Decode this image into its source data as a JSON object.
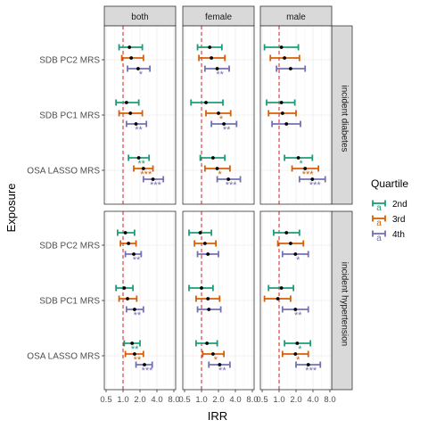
{
  "chart_data": {
    "type": "forest",
    "title": "",
    "xlabel": "IRR",
    "ylabel": "Exposure",
    "x_scale": "log2",
    "xlim": [
      0.5,
      8.0
    ],
    "x_ticks": [
      0.5,
      1.0,
      2.0,
      4.0,
      8.0
    ],
    "x_tick_labels": [
      "0.5",
      "1.0",
      "2.0",
      "4.0",
      "8.0"
    ],
    "reference_line": 1.0,
    "reference_line_color": "#d7191c",
    "columns": [
      "both",
      "female",
      "male"
    ],
    "rows": [
      "incident diabetes",
      "incident hypertension"
    ],
    "exposures": [
      "SDB PC2 MRS",
      "SDB PC1 MRS",
      "OSA LASSO MRS"
    ],
    "legend": {
      "title": "Quartile",
      "entries": [
        {
          "key": "2nd",
          "label": "2nd",
          "color": "#1b9e77"
        },
        {
          "key": "3rd",
          "label": "3rd",
          "color": "#d95f02"
        },
        {
          "key": "4th",
          "label": "4th",
          "color": "#7570b3"
        }
      ],
      "key_glyph": "a",
      "position": "right"
    },
    "panels": [
      {
        "row": "incident diabetes",
        "col": "both",
        "estimates": [
          {
            "exposure": "SDB PC2 MRS",
            "quartile": "2nd",
            "est": 1.3,
            "lo": 0.85,
            "hi": 2.2,
            "sig": ""
          },
          {
            "exposure": "SDB PC2 MRS",
            "quartile": "3rd",
            "est": 1.4,
            "lo": 0.95,
            "hi": 2.3,
            "sig": ""
          },
          {
            "exposure": "SDB PC2 MRS",
            "quartile": "4th",
            "est": 1.85,
            "lo": 1.2,
            "hi": 3.0,
            "sig": "*"
          },
          {
            "exposure": "SDB PC1 MRS",
            "quartile": "2nd",
            "est": 1.15,
            "lo": 0.75,
            "hi": 1.9,
            "sig": ""
          },
          {
            "exposure": "SDB PC1 MRS",
            "quartile": "3rd",
            "est": 1.35,
            "lo": 0.85,
            "hi": 2.2,
            "sig": ""
          },
          {
            "exposure": "SDB PC1 MRS",
            "quartile": "4th",
            "est": 1.7,
            "lo": 1.15,
            "hi": 2.6,
            "sig": "**"
          },
          {
            "exposure": "OSA LASSO MRS",
            "quartile": "2nd",
            "est": 1.9,
            "lo": 1.25,
            "hi": 2.9,
            "sig": "**"
          },
          {
            "exposure": "OSA LASSO MRS",
            "quartile": "3rd",
            "est": 2.3,
            "lo": 1.55,
            "hi": 3.4,
            "sig": "***"
          },
          {
            "exposure": "OSA LASSO MRS",
            "quartile": "4th",
            "est": 3.4,
            "lo": 2.3,
            "hi": 5.2,
            "sig": "***"
          }
        ]
      },
      {
        "row": "incident diabetes",
        "col": "female",
        "estimates": [
          {
            "exposure": "SDB PC2 MRS",
            "quartile": "2nd",
            "est": 1.4,
            "lo": 0.85,
            "hi": 2.3,
            "sig": ""
          },
          {
            "exposure": "SDB PC2 MRS",
            "quartile": "3rd",
            "est": 1.5,
            "lo": 0.9,
            "hi": 2.6,
            "sig": ""
          },
          {
            "exposure": "SDB PC2 MRS",
            "quartile": "4th",
            "est": 1.9,
            "lo": 1.15,
            "hi": 3.1,
            "sig": "**"
          },
          {
            "exposure": "SDB PC1 MRS",
            "quartile": "2nd",
            "est": 1.2,
            "lo": 0.65,
            "hi": 2.4,
            "sig": ""
          },
          {
            "exposure": "SDB PC1 MRS",
            "quartile": "3rd",
            "est": 2.0,
            "lo": 1.2,
            "hi": 3.3,
            "sig": "*"
          },
          {
            "exposure": "SDB PC1 MRS",
            "quartile": "4th",
            "est": 2.5,
            "lo": 1.5,
            "hi": 4.2,
            "sig": "**"
          },
          {
            "exposure": "OSA LASSO MRS",
            "quartile": "2nd",
            "est": 1.6,
            "lo": 0.95,
            "hi": 2.6,
            "sig": ""
          },
          {
            "exposure": "OSA LASSO MRS",
            "quartile": "3rd",
            "est": 1.9,
            "lo": 1.15,
            "hi": 3.2,
            "sig": "*"
          },
          {
            "exposure": "OSA LASSO MRS",
            "quartile": "4th",
            "est": 3.0,
            "lo": 1.9,
            "hi": 4.9,
            "sig": "***"
          }
        ]
      },
      {
        "row": "incident diabetes",
        "col": "male",
        "estimates": [
          {
            "exposure": "SDB PC2 MRS",
            "quartile": "2nd",
            "est": 1.1,
            "lo": 0.55,
            "hi": 2.2,
            "sig": ""
          },
          {
            "exposure": "SDB PC2 MRS",
            "quartile": "3rd",
            "est": 1.25,
            "lo": 0.7,
            "hi": 2.3,
            "sig": ""
          },
          {
            "exposure": "SDB PC2 MRS",
            "quartile": "4th",
            "est": 1.6,
            "lo": 0.9,
            "hi": 2.9,
            "sig": ""
          },
          {
            "exposure": "SDB PC1 MRS",
            "quartile": "2nd",
            "est": 1.1,
            "lo": 0.6,
            "hi": 1.9,
            "sig": ""
          },
          {
            "exposure": "SDB PC1 MRS",
            "quartile": "3rd",
            "est": 1.15,
            "lo": 0.65,
            "hi": 2.0,
            "sig": ""
          },
          {
            "exposure": "SDB PC1 MRS",
            "quartile": "4th",
            "est": 1.35,
            "lo": 0.75,
            "hi": 2.4,
            "sig": ""
          },
          {
            "exposure": "OSA LASSO MRS",
            "quartile": "2nd",
            "est": 2.2,
            "lo": 1.25,
            "hi": 3.9,
            "sig": "*"
          },
          {
            "exposure": "OSA LASSO MRS",
            "quartile": "3rd",
            "est": 2.9,
            "lo": 1.7,
            "hi": 5.0,
            "sig": "***"
          },
          {
            "exposure": "OSA LASSO MRS",
            "quartile": "4th",
            "est": 3.9,
            "lo": 2.3,
            "hi": 6.6,
            "sig": "***"
          }
        ]
      },
      {
        "row": "incident hypertension",
        "col": "both",
        "estimates": [
          {
            "exposure": "SDB PC2 MRS",
            "quartile": "2nd",
            "est": 1.1,
            "lo": 0.8,
            "hi": 1.6,
            "sig": ""
          },
          {
            "exposure": "SDB PC2 MRS",
            "quartile": "3rd",
            "est": 1.25,
            "lo": 0.9,
            "hi": 1.7,
            "sig": ""
          },
          {
            "exposure": "SDB PC2 MRS",
            "quartile": "4th",
            "est": 1.55,
            "lo": 1.1,
            "hi": 2.1,
            "sig": "**"
          },
          {
            "exposure": "SDB PC1 MRS",
            "quartile": "2nd",
            "est": 1.05,
            "lo": 0.75,
            "hi": 1.5,
            "sig": ""
          },
          {
            "exposure": "SDB PC1 MRS",
            "quartile": "3rd",
            "est": 1.2,
            "lo": 0.85,
            "hi": 1.75,
            "sig": ""
          },
          {
            "exposure": "SDB PC1 MRS",
            "quartile": "4th",
            "est": 1.6,
            "lo": 1.15,
            "hi": 2.3,
            "sig": "**"
          },
          {
            "exposure": "OSA LASSO MRS",
            "quartile": "2nd",
            "est": 1.45,
            "lo": 1.05,
            "hi": 2.0,
            "sig": "**"
          },
          {
            "exposure": "OSA LASSO MRS",
            "quartile": "3rd",
            "est": 1.6,
            "lo": 1.1,
            "hi": 2.3,
            "sig": "**"
          },
          {
            "exposure": "OSA LASSO MRS",
            "quartile": "4th",
            "est": 2.4,
            "lo": 1.7,
            "hi": 3.3,
            "sig": "***"
          }
        ]
      },
      {
        "row": "incident hypertension",
        "col": "female",
        "estimates": [
          {
            "exposure": "SDB PC2 MRS",
            "quartile": "2nd",
            "est": 0.95,
            "lo": 0.6,
            "hi": 1.5,
            "sig": ""
          },
          {
            "exposure": "SDB PC2 MRS",
            "quartile": "3rd",
            "est": 1.15,
            "lo": 0.75,
            "hi": 1.8,
            "sig": ""
          },
          {
            "exposure": "SDB PC2 MRS",
            "quartile": "4th",
            "est": 1.3,
            "lo": 0.85,
            "hi": 2.0,
            "sig": ""
          },
          {
            "exposure": "SDB PC1 MRS",
            "quartile": "2nd",
            "est": 1.0,
            "lo": 0.6,
            "hi": 1.6,
            "sig": ""
          },
          {
            "exposure": "SDB PC1 MRS",
            "quartile": "3rd",
            "est": 1.3,
            "lo": 0.8,
            "hi": 2.1,
            "sig": ""
          },
          {
            "exposure": "SDB PC1 MRS",
            "quartile": "4th",
            "est": 1.35,
            "lo": 0.85,
            "hi": 2.2,
            "sig": ""
          },
          {
            "exposure": "OSA LASSO MRS",
            "quartile": "2nd",
            "est": 1.25,
            "lo": 0.8,
            "hi": 1.9,
            "sig": ""
          },
          {
            "exposure": "OSA LASSO MRS",
            "quartile": "3rd",
            "est": 1.6,
            "lo": 1.05,
            "hi": 2.5,
            "sig": "*"
          },
          {
            "exposure": "OSA LASSO MRS",
            "quartile": "4th",
            "est": 2.1,
            "lo": 1.35,
            "hi": 3.2,
            "sig": "**"
          }
        ]
      },
      {
        "row": "incident hypertension",
        "col": "male",
        "estimates": [
          {
            "exposure": "SDB PC2 MRS",
            "quartile": "2nd",
            "est": 1.35,
            "lo": 0.8,
            "hi": 2.3,
            "sig": ""
          },
          {
            "exposure": "SDB PC2 MRS",
            "quartile": "3rd",
            "est": 1.6,
            "lo": 0.95,
            "hi": 2.7,
            "sig": ""
          },
          {
            "exposure": "SDB PC2 MRS",
            "quartile": "4th",
            "est": 1.95,
            "lo": 1.15,
            "hi": 3.3,
            "sig": "*"
          },
          {
            "exposure": "SDB PC1 MRS",
            "quartile": "2nd",
            "est": 1.1,
            "lo": 0.65,
            "hi": 1.8,
            "sig": ""
          },
          {
            "exposure": "SDB PC1 MRS",
            "quartile": "3rd",
            "est": 0.95,
            "lo": 0.55,
            "hi": 1.6,
            "sig": ""
          },
          {
            "exposure": "SDB PC1 MRS",
            "quartile": "4th",
            "est": 1.95,
            "lo": 1.15,
            "hi": 3.3,
            "sig": "**"
          },
          {
            "exposure": "OSA LASSO MRS",
            "quartile": "2nd",
            "est": 2.1,
            "lo": 1.25,
            "hi": 3.6,
            "sig": "*"
          },
          {
            "exposure": "OSA LASSO MRS",
            "quartile": "3rd",
            "est": 1.95,
            "lo": 1.15,
            "hi": 3.3,
            "sig": "*"
          },
          {
            "exposure": "OSA LASSO MRS",
            "quartile": "4th",
            "est": 3.3,
            "lo": 2.0,
            "hi": 5.4,
            "sig": "***"
          }
        ]
      }
    ]
  }
}
